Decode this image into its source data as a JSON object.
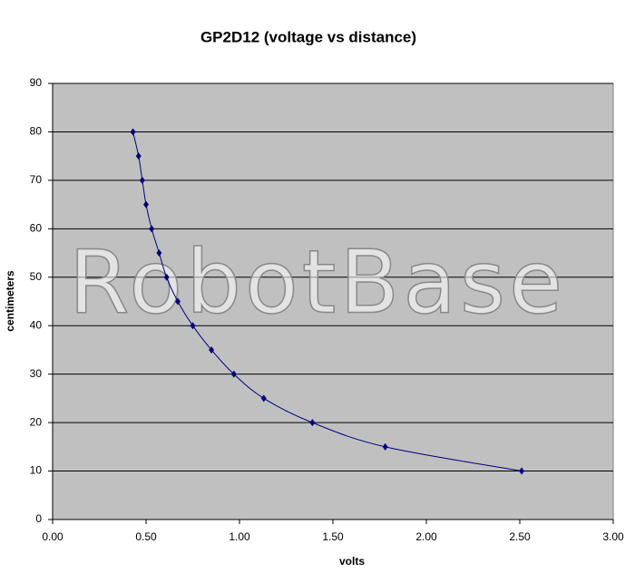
{
  "chart_data": {
    "type": "scatter",
    "title": "GP2D12 (voltage vs distance)",
    "x_label": "volts",
    "y_label": "centimeters",
    "watermark": "RobotBase",
    "series": [
      {
        "name": "GP2D12",
        "color": "#000080",
        "x": [
          0.43,
          0.46,
          0.48,
          0.5,
          0.53,
          0.57,
          0.61,
          0.67,
          0.75,
          0.85,
          0.97,
          1.13,
          1.39,
          1.78,
          2.51
        ],
        "values": [
          80,
          75,
          70,
          65,
          60,
          55,
          50,
          45,
          40,
          35,
          30,
          25,
          20,
          15,
          10
        ]
      }
    ],
    "xlim": [
      0,
      3
    ],
    "ylim": [
      0,
      90
    ],
    "xticks": [
      {
        "value": 0,
        "label": "0.00"
      },
      {
        "value": 0.5,
        "label": "0.50"
      },
      {
        "value": 1,
        "label": "1.00"
      },
      {
        "value": 1.5,
        "label": "1.50"
      },
      {
        "value": 2,
        "label": "2.00"
      },
      {
        "value": 2.5,
        "label": "2.50"
      },
      {
        "value": 3,
        "label": "3.00"
      }
    ],
    "yticks": [
      0,
      10,
      20,
      30,
      40,
      50,
      60,
      70,
      80,
      90
    ],
    "grid": true,
    "plot_background": "#c0c0c0"
  }
}
